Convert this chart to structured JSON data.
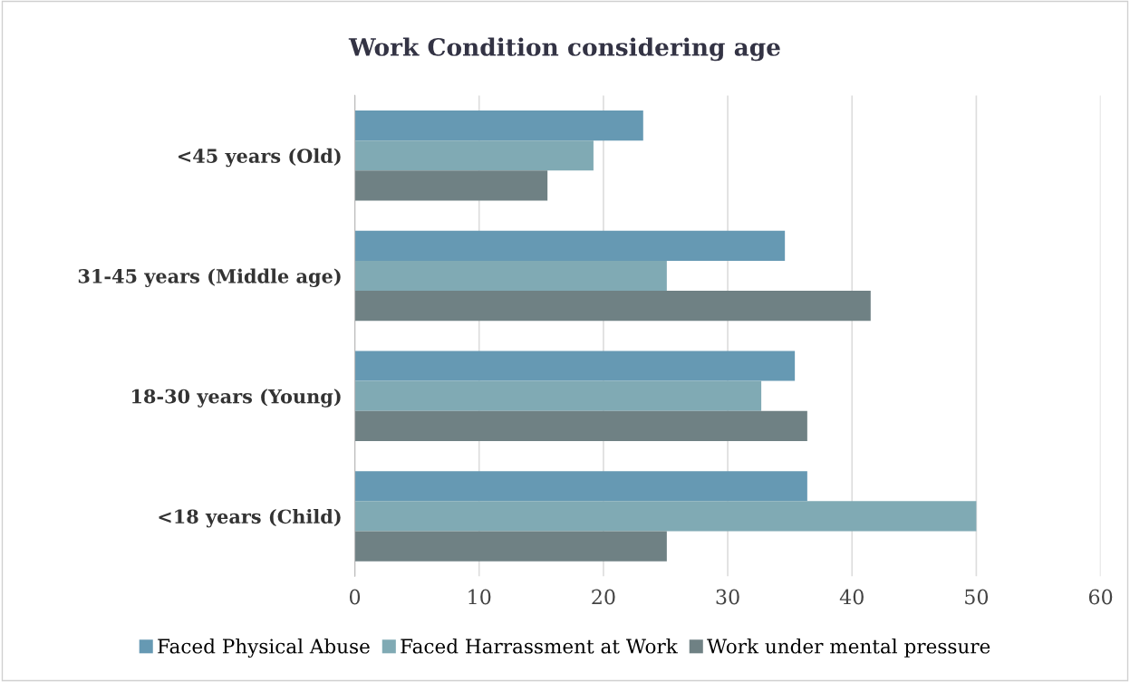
{
  "chart_data": {
    "type": "bar",
    "orientation": "horizontal",
    "title": "Work Condition considering age",
    "categories": [
      "<45 years (Old)",
      "31-45 years (Middle age)",
      "18-30 years (Young)",
      "<18 years (Child)"
    ],
    "series": [
      {
        "name": "Faced Physical Abuse",
        "color": "#6699b3",
        "values": [
          23.2,
          34.6,
          35.4,
          36.4
        ]
      },
      {
        "name": "Faced Harrassment at Work",
        "color": "#80aab4",
        "values": [
          19.2,
          25.1,
          32.7,
          50.0
        ]
      },
      {
        "name": "Work under mental pressure",
        "color": "#6f8184",
        "values": [
          15.5,
          41.5,
          36.4,
          25.1
        ]
      }
    ],
    "xlim": [
      0,
      60
    ],
    "xticks": [
      0,
      10,
      20,
      30,
      40,
      50,
      60
    ],
    "grid": "x",
    "legend": "bottom"
  }
}
